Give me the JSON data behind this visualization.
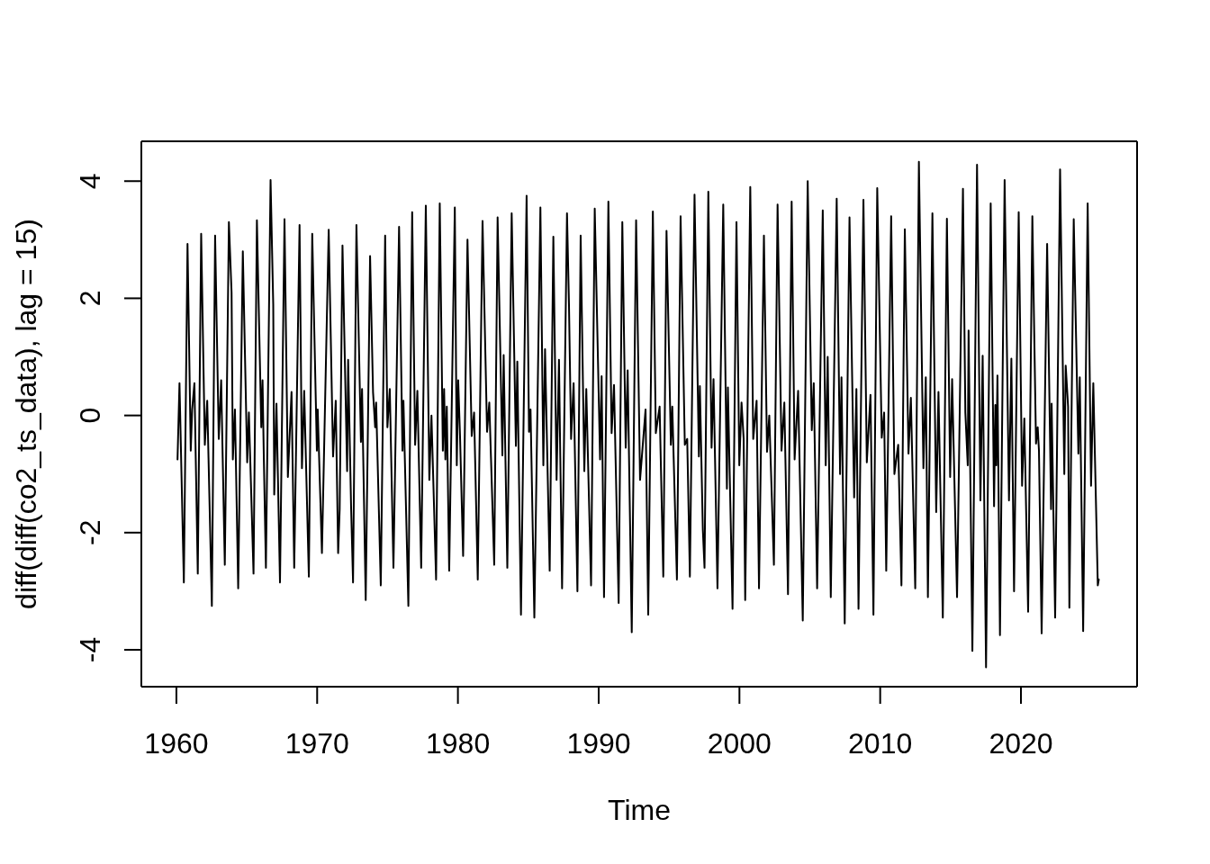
{
  "chart_data": {
    "type": "line",
    "xlabel": "Time",
    "ylabel": "diff(diff(co2_ts_data), lag = 15)",
    "xlim": [
      1957.51,
      2028.25
    ],
    "ylim": [
      -4.63,
      4.68
    ],
    "xticks": [
      1960,
      1970,
      1980,
      1990,
      2000,
      2010,
      2020
    ],
    "yticks": [
      -4,
      -2,
      0,
      2,
      4
    ],
    "x": [
      1960.08,
      1960.22,
      1960.53,
      1960.79,
      1961.02,
      1961.12,
      1961.28,
      1961.52,
      1961.76,
      1962.02,
      1962.19,
      1962.52,
      1962.75,
      1963.01,
      1963.18,
      1963.44,
      1963.73,
      1963.92,
      1964.01,
      1964.16,
      1964.39,
      1964.72,
      1965.03,
      1965.15,
      1965.48,
      1965.72,
      1966.03,
      1966.12,
      1966.21,
      1966.36,
      1966.69,
      1966.88,
      1966.95,
      1967.11,
      1967.36,
      1967.68,
      1967.92,
      1968.18,
      1968.37,
      1968.75,
      1968.92,
      1969.08,
      1969.41,
      1969.65,
      1969.98,
      1970.04,
      1970.34,
      1970.82,
      1971.13,
      1971.32,
      1971.49,
      1971.6,
      1971.8,
      1972.13,
      1972.2,
      1972.41,
      1972.55,
      1972.79,
      1973.11,
      1973.19,
      1973.45,
      1973.76,
      1973.97,
      1974.12,
      1974.19,
      1974.52,
      1974.83,
      1974.99,
      1975.16,
      1975.42,
      1975.82,
      1976.06,
      1976.13,
      1976.48,
      1976.75,
      1976.96,
      1977.12,
      1977.39,
      1977.72,
      1977.97,
      1978.12,
      1978.45,
      1978.71,
      1978.93,
      1979.02,
      1979.11,
      1979.21,
      1979.38,
      1979.78,
      1979.92,
      1980.02,
      1980.15,
      1980.37,
      1980.68,
      1980.98,
      1981.15,
      1981.41,
      1981.75,
      1982.07,
      1982.23,
      1982.58,
      1982.82,
      1983.16,
      1983.25,
      1983.51,
      1983.82,
      1984.12,
      1984.22,
      1984.34,
      1984.48,
      1984.88,
      1985.05,
      1985.16,
      1985.43,
      1985.86,
      1986.07,
      1986.19,
      1986.52,
      1986.78,
      1987.01,
      1987.18,
      1987.4,
      1987.75,
      1987.89,
      1988.04,
      1988.22,
      1988.49,
      1988.72,
      1988.98,
      1989.12,
      1989.46,
      1989.72,
      1990.1,
      1990.21,
      1990.38,
      1990.69,
      1990.92,
      1991.09,
      1991.42,
      1991.68,
      1991.92,
      1992.06,
      1992.35,
      1992.66,
      1992.94,
      1993.33,
      1993.52,
      1993.85,
      1994.06,
      1994.33,
      1994.59,
      1994.82,
      1995.13,
      1995.23,
      1995.56,
      1995.82,
      1996.12,
      1996.29,
      1996.48,
      1996.81,
      1997.12,
      1997.19,
      1997.4,
      1997.52,
      1997.79,
      1998.02,
      1998.16,
      1998.44,
      1998.85,
      1999.11,
      1999.18,
      1999.51,
      1999.79,
      1999.99,
      2000.15,
      2000.3,
      2000.41,
      2000.77,
      2000.98,
      2001.22,
      2001.39,
      2001.74,
      2001.96,
      2002.12,
      2002.45,
      2002.71,
      2002.99,
      2003.19,
      2003.45,
      2003.71,
      2003.92,
      2004.17,
      2004.5,
      2004.85,
      2005.14,
      2005.28,
      2005.52,
      2005.92,
      2006.13,
      2006.27,
      2006.49,
      2006.91,
      2007.15,
      2007.25,
      2007.48,
      2007.82,
      2008.15,
      2008.31,
      2008.46,
      2008.81,
      2009.05,
      2009.31,
      2009.52,
      2009.79,
      2010.11,
      2010.28,
      2010.43,
      2010.78,
      2011.01,
      2011.28,
      2011.51,
      2011.75,
      2012.01,
      2012.18,
      2012.49,
      2012.75,
      2013.07,
      2013.24,
      2013.39,
      2013.71,
      2013.98,
      2014.14,
      2014.45,
      2014.74,
      2014.97,
      2015.11,
      2015.46,
      2015.88,
      2016.05,
      2016.22,
      2016.28,
      2016.55,
      2016.88,
      2017.12,
      2017.28,
      2017.52,
      2017.85,
      2018.09,
      2018.18,
      2018.25,
      2018.33,
      2018.51,
      2018.84,
      2019.15,
      2019.32,
      2019.51,
      2019.84,
      2020.08,
      2020.24,
      2020.51,
      2020.81,
      2021.07,
      2021.19,
      2021.28,
      2021.47,
      2021.86,
      2022.14,
      2022.18,
      2022.43,
      2022.78,
      2023.08,
      2023.18,
      2023.35,
      2023.44,
      2023.75,
      2024.08,
      2024.18,
      2024.42,
      2024.74,
      2024.98,
      2025.14,
      2025.46,
      2025.53
    ],
    "series": [
      {
        "color": "#000000",
        "values": [
          -0.75,
          0.55,
          -2.85,
          2.93,
          -0.6,
          0.1,
          0.55,
          -2.7,
          3.1,
          -0.5,
          0.25,
          -3.25,
          3.07,
          -0.4,
          0.6,
          -2.55,
          3.3,
          2.1,
          -0.75,
          0.1,
          -2.95,
          2.8,
          -0.8,
          0.05,
          -2.7,
          3.33,
          -0.2,
          0.6,
          -0.7,
          -2.6,
          4.02,
          1.9,
          -1.35,
          0.2,
          -2.85,
          3.35,
          -1.05,
          0.4,
          -2.6,
          3.25,
          -0.9,
          0.42,
          -2.75,
          3.1,
          -0.6,
          0.1,
          -2.35,
          3.17,
          -0.7,
          0.25,
          -2.35,
          -1.6,
          2.9,
          -0.95,
          0.95,
          -1.55,
          -2.85,
          3.25,
          -0.45,
          0.45,
          -3.15,
          2.72,
          0.4,
          -0.2,
          0.22,
          -2.9,
          3.07,
          -0.2,
          0.45,
          -2.6,
          3.22,
          -0.6,
          0.25,
          -3.25,
          3.47,
          -0.5,
          0.42,
          -2.6,
          3.58,
          -1.1,
          0.0,
          -2.8,
          3.62,
          -0.6,
          0.45,
          -0.75,
          0.15,
          -2.65,
          3.55,
          -0.85,
          0.6,
          -0.35,
          -2.4,
          3.0,
          -0.35,
          0.05,
          -2.8,
          3.32,
          -0.28,
          0.22,
          -2.55,
          3.38,
          -0.68,
          1.03,
          -2.6,
          3.45,
          -0.52,
          0.92,
          -1.1,
          -3.4,
          3.75,
          -0.28,
          0.1,
          -3.45,
          3.55,
          -0.85,
          1.13,
          -2.65,
          3.05,
          -1.1,
          0.95,
          -2.95,
          3.45,
          1.9,
          -0.4,
          0.55,
          -3.0,
          3.07,
          -0.95,
          0.45,
          -2.9,
          3.53,
          -0.75,
          0.67,
          -3.1,
          3.65,
          -0.3,
          0.52,
          -3.2,
          3.3,
          -0.55,
          0.77,
          -3.7,
          3.33,
          -1.1,
          0.1,
          -3.4,
          3.48,
          -0.3,
          0.15,
          -2.75,
          3.15,
          -0.5,
          0.15,
          -2.8,
          3.4,
          -0.5,
          -0.4,
          -2.75,
          3.77,
          -0.7,
          0.5,
          -1.95,
          -2.6,
          3.82,
          -0.55,
          0.62,
          -2.95,
          3.6,
          -1.25,
          0.48,
          -3.3,
          3.3,
          -0.85,
          0.22,
          -0.4,
          -3.15,
          3.9,
          -0.4,
          0.25,
          -2.95,
          3.07,
          -0.62,
          0.0,
          -2.55,
          3.6,
          -0.6,
          0.22,
          -3.05,
          3.65,
          -0.75,
          0.42,
          -3.5,
          4.0,
          -0.25,
          0.55,
          -2.95,
          3.5,
          -0.85,
          1.0,
          -3.1,
          3.7,
          -1.0,
          0.65,
          -3.55,
          3.38,
          -1.4,
          0.45,
          -3.3,
          3.68,
          -0.8,
          0.35,
          -3.4,
          3.88,
          -0.38,
          0.05,
          -2.65,
          3.4,
          -1.0,
          -0.5,
          -2.9,
          3.18,
          -0.65,
          0.3,
          -2.95,
          4.33,
          -0.9,
          0.65,
          -3.1,
          3.45,
          -1.65,
          0.4,
          -3.45,
          3.36,
          -1.05,
          0.62,
          -3.1,
          3.87,
          0.05,
          -0.85,
          1.45,
          -4.02,
          4.28,
          -1.45,
          1.02,
          -4.3,
          3.62,
          -1.55,
          0.18,
          -0.85,
          0.68,
          -3.75,
          4.02,
          -1.45,
          0.97,
          -3.0,
          3.47,
          -1.2,
          -0.05,
          -3.35,
          3.4,
          -0.48,
          -0.2,
          -0.6,
          -3.72,
          2.93,
          -1.6,
          0.2,
          -3.45,
          4.2,
          -1.0,
          0.85,
          0.15,
          -3.28,
          3.35,
          -0.65,
          0.65,
          -3.68,
          3.62,
          -1.2,
          0.55,
          -2.9,
          -2.8
        ]
      }
    ]
  }
}
